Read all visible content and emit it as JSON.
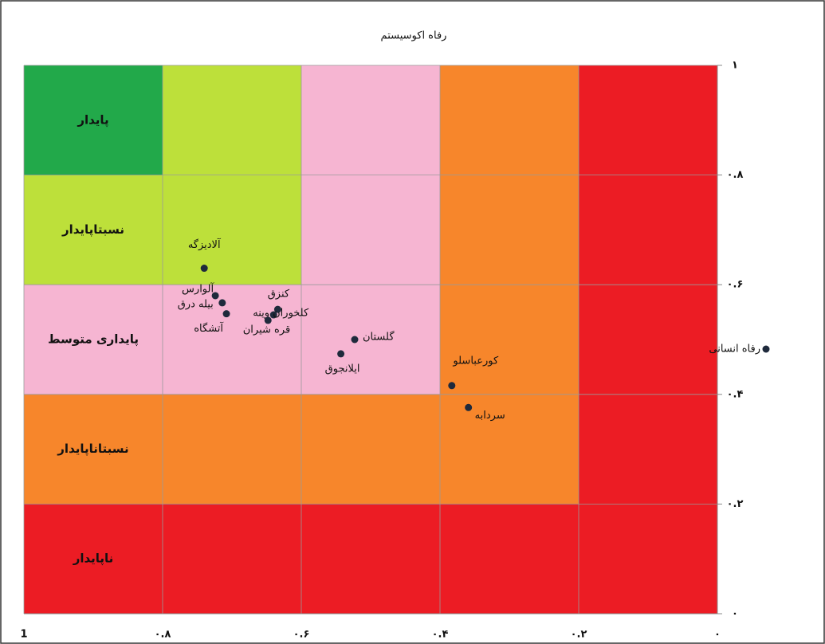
{
  "chart_data": {
    "type": "scatter",
    "title": "رفاه اکوسیستم",
    "xlim": [
      1,
      0
    ],
    "ylim": [
      0,
      1
    ],
    "xticks": [
      1,
      {
        "value": 0.8,
        "label": "۰.۸"
      },
      {
        "value": 0.6,
        "label": "۰.۶"
      },
      {
        "value": 0.4,
        "label": "۰.۴"
      },
      {
        "value": 0.2,
        "label": "۰.۲"
      },
      {
        "value": 0,
        "label": "۰"
      }
    ],
    "yticks": [
      {
        "value": 0,
        "label": "۰"
      },
      {
        "value": 0.2,
        "label": "۰.۲"
      },
      {
        "value": 0.4,
        "label": "۰.۴"
      },
      {
        "value": 0.6,
        "label": "۰.۶"
      },
      {
        "value": 0.8,
        "label": "۰.۸"
      },
      {
        "value": 1,
        "label": "۱"
      }
    ],
    "grid": true,
    "zones": [
      {
        "label": "ناپایدار",
        "color": "#ec1c24"
      },
      {
        "label": "نسبتاناپایدار",
        "color": "#f7862b"
      },
      {
        "label": "پایداری متوسط",
        "color": "#f6b5d2"
      },
      {
        "label": "نسبتاپایدار",
        "color": "#bde03a"
      },
      {
        "label": "پایدار",
        "color": "#22a94a"
      }
    ],
    "series": [
      {
        "name": "رفاه انسانی",
        "color": "#1f2a3c",
        "labels": [
          "آلادیزگه",
          "آلوارس",
          "بیله درق",
          "آتشگاه",
          "کنزق",
          "کلخوران وینه",
          "قره شیران",
          "گلستان",
          "ایلانجوق",
          "کورعباسلو",
          "سردابه"
        ],
        "x": [
          0.74,
          0.724,
          0.714,
          0.708,
          0.634,
          0.64,
          0.648,
          0.523,
          0.543,
          0.383,
          0.359
        ],
        "values": [
          0.63,
          0.58,
          0.567,
          0.547,
          0.555,
          0.545,
          0.535,
          0.5,
          0.474,
          0.416,
          0.376
        ]
      }
    ]
  }
}
